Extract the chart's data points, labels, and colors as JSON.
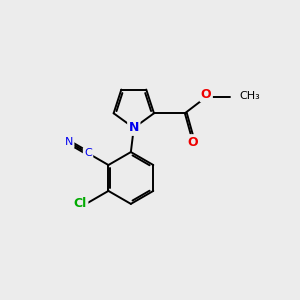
{
  "background_color": "#ececec",
  "bond_color": "#000000",
  "bond_width": 1.4,
  "atom_colors": {
    "N": "#0000ee",
    "O": "#ee0000",
    "Cl": "#00aa00",
    "CN": "#0000ee"
  },
  "figsize": [
    3.0,
    3.0
  ],
  "dpi": 100
}
